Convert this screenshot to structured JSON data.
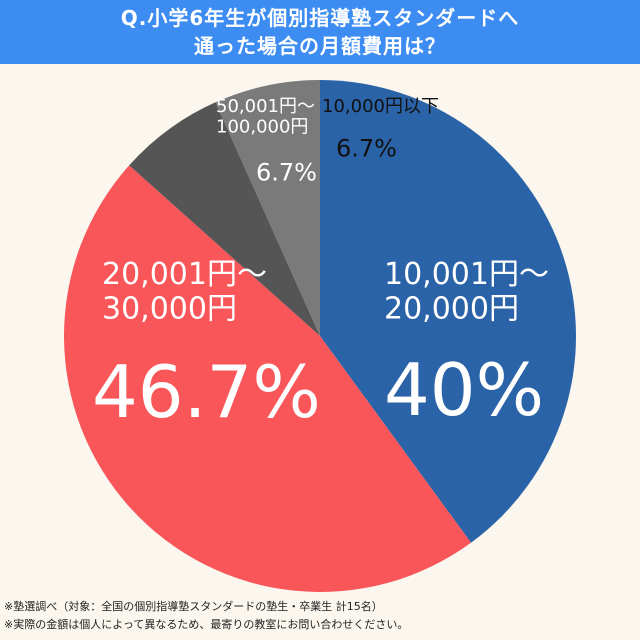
{
  "title": {
    "line1": "Q.小学6年生が個別指導塾スタンダードへ",
    "line2": "通った場合の月額費用は？"
  },
  "colors": {
    "title_bg": "#3d8cf2",
    "background": "#fbf7ef"
  },
  "chart_data": {
    "type": "pie",
    "title": "Q.小学6年生が個別指導塾スタンダードへ通った場合の月額費用は？",
    "unit": "%",
    "start_angle_deg": 0,
    "direction": "clockwise",
    "slices": [
      {
        "label_lines": [
          "10,001円〜",
          "20,000円"
        ],
        "value": 40,
        "value_label": "40%",
        "color": "#2b63a8"
      },
      {
        "label_lines": [
          "20,001円〜",
          "30,000円"
        ],
        "value": 46.7,
        "value_label": "46.7%",
        "color": "#f9565a"
      },
      {
        "label_lines": [
          "50,001円〜",
          "100,000円"
        ],
        "value": 6.7,
        "value_label": "6.7%",
        "color": "#555555"
      },
      {
        "label_lines": [
          "10,000円以下"
        ],
        "value": 6.7,
        "value_label": "6.7%",
        "color": "#7a7a7a"
      }
    ]
  },
  "footnotes": [
    "※塾選調べ（対象：全国の個別指導塾スタンダードの塾生・卒業生 計15名）",
    "※実際の金額は個人によって異なるため、最寄りの教室にお問い合わせください。"
  ]
}
